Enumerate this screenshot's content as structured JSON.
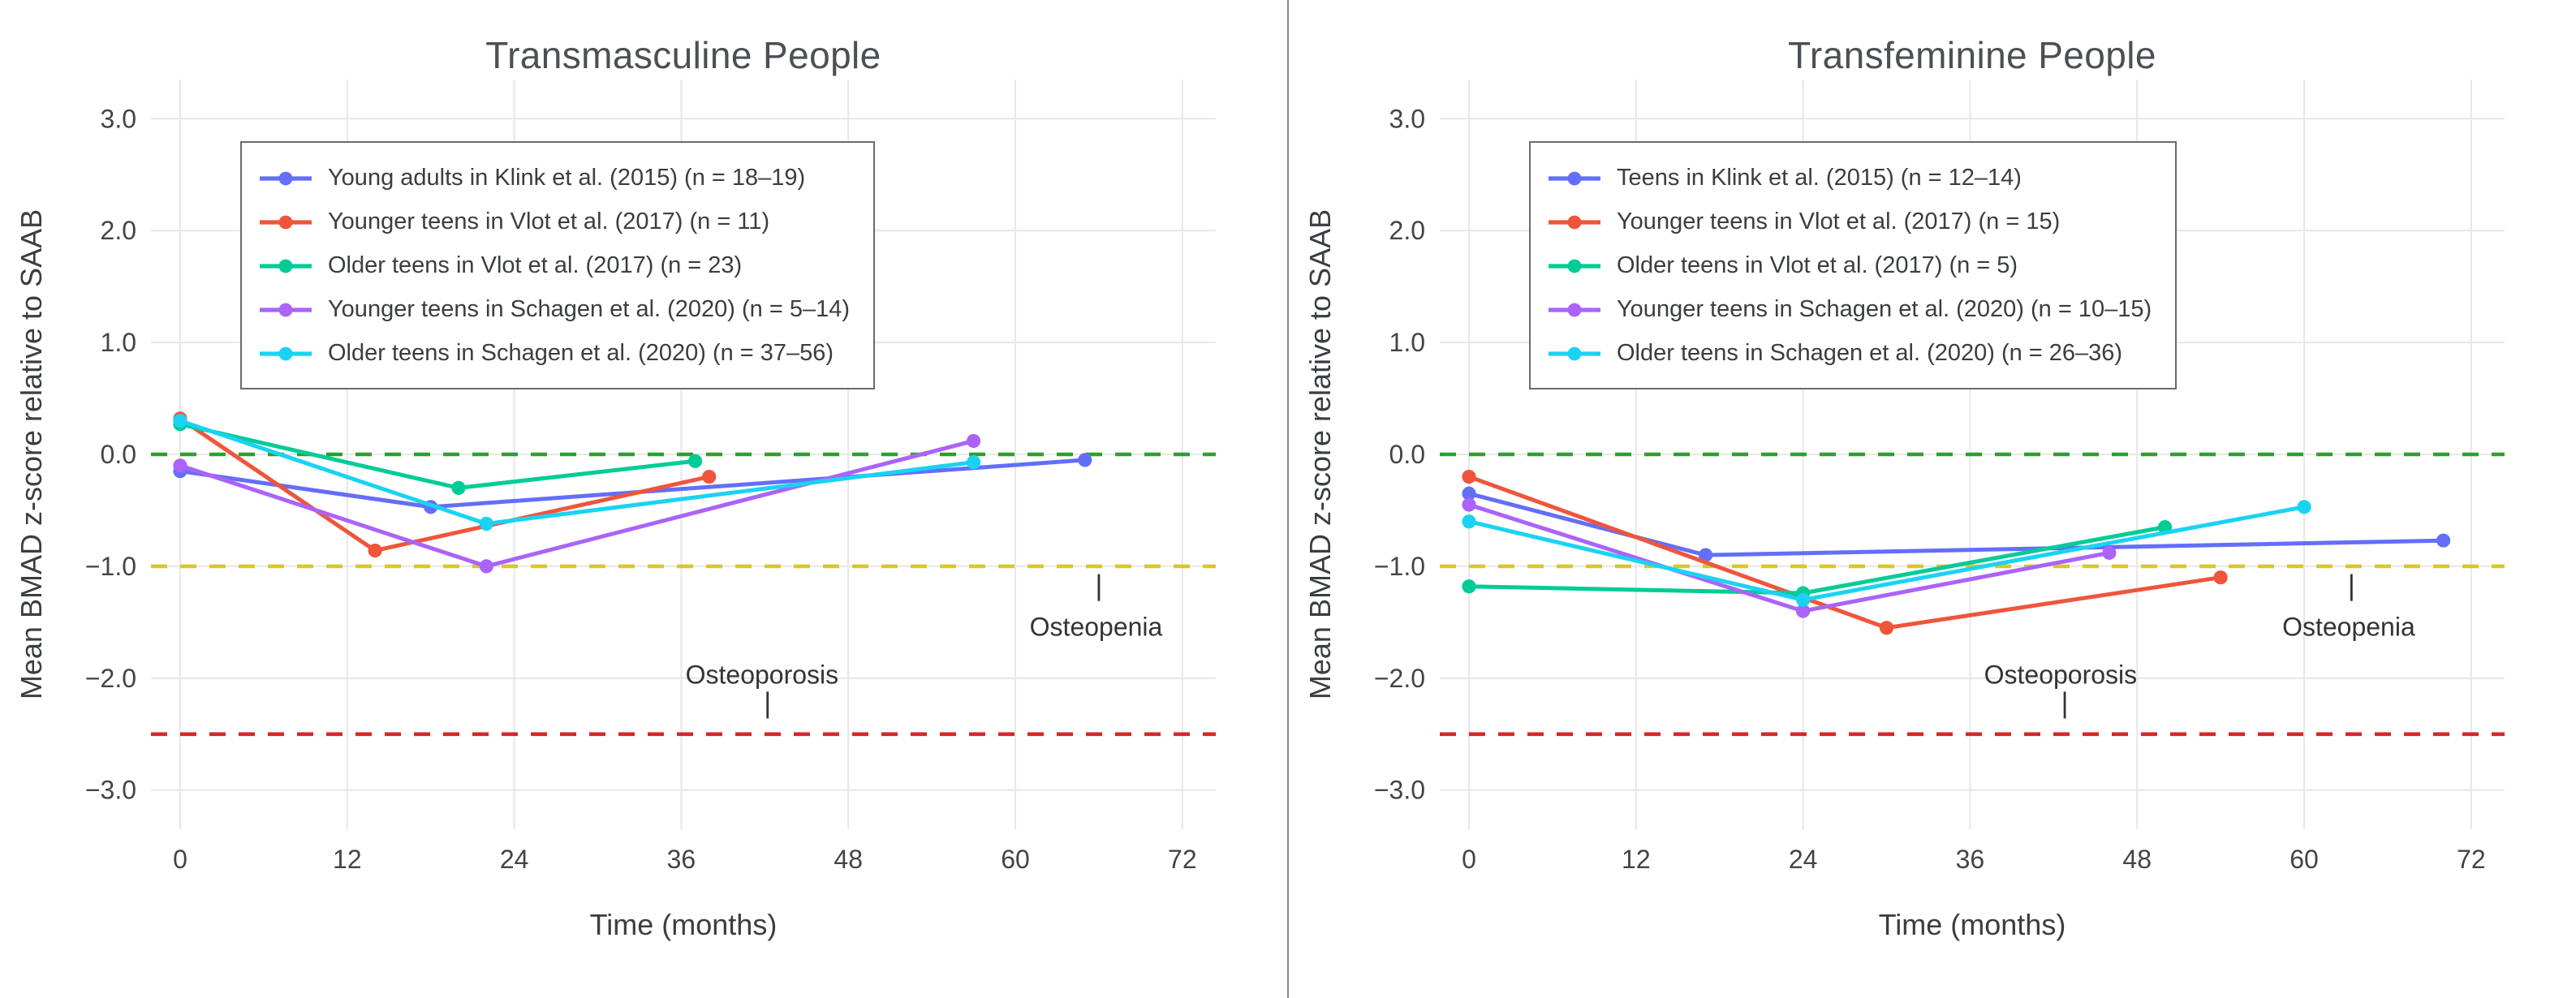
{
  "chart_data": [
    {
      "type": "line",
      "title": "Transmasculine People",
      "xlabel": "Time (months)",
      "ylabel": "Mean BMAD z-score relative to SAAB",
      "grid": true,
      "legend_position": "top-left",
      "x_range": [
        -2.1,
        74.4
      ],
      "y_range": [
        -3.35,
        3.35
      ],
      "x_ticks": [
        {
          "value": 0,
          "label": "0"
        },
        {
          "value": 12,
          "label": "12"
        },
        {
          "value": 24,
          "label": "24"
        },
        {
          "value": 36,
          "label": "36"
        },
        {
          "value": 48,
          "label": "48"
        },
        {
          "value": 60,
          "label": "60"
        },
        {
          "value": 72,
          "label": "72"
        }
      ],
      "y_ticks": [
        {
          "value": 3,
          "label": "3.0"
        },
        {
          "value": 2,
          "label": "2.0"
        },
        {
          "value": 1,
          "label": "1.0"
        },
        {
          "value": 0,
          "label": "0.0"
        },
        {
          "value": -1,
          "label": "−1.0"
        },
        {
          "value": -2,
          "label": "−2.0"
        },
        {
          "value": -3,
          "label": "−3.0"
        }
      ],
      "reference_lines": [
        {
          "name": "zero-line",
          "y": 0,
          "color": "#2ca02c"
        },
        {
          "name": "osteopenia-line",
          "y": -1,
          "color": "#d9c62e"
        },
        {
          "name": "osteoporosis-line",
          "y": -2.5,
          "color": "#d62728"
        }
      ],
      "annotations": [
        {
          "name": "osteopenia-label",
          "text": "Osteopenia",
          "x": 65.8,
          "y": -1.54,
          "tick_x": 66.0,
          "tick_y1": -1.07,
          "tick_y2": -1.31
        },
        {
          "name": "osteoporosis-label",
          "text": "Osteoporosis",
          "x": 41.8,
          "y": -1.97,
          "tick_x": 42.2,
          "tick_y1": -2.12,
          "tick_y2": -2.36
        }
      ],
      "series": [
        {
          "name": "Young adults in Klink et al. (2015) (n = 18–19)",
          "color": "#636efa",
          "points": [
            [
              0,
              -0.15
            ],
            [
              18,
              -0.47
            ],
            [
              65,
              -0.05
            ]
          ]
        },
        {
          "name": "Younger teens in Vlot et al. (2017) (n = 11)",
          "color": "#ef553b",
          "points": [
            [
              0,
              0.32
            ],
            [
              14,
              -0.86
            ],
            [
              38,
              -0.2
            ]
          ]
        },
        {
          "name": "Older teens in Vlot et al. (2017) (n = 23)",
          "color": "#00cc96",
          "points": [
            [
              0,
              0.27
            ],
            [
              20,
              -0.3
            ],
            [
              37,
              -0.06
            ]
          ]
        },
        {
          "name": "Younger teens in Schagen et al. (2020) (n = 5–14)",
          "color": "#ab63fa",
          "points": [
            [
              0,
              -0.1
            ],
            [
              22,
              -1.0
            ],
            [
              57,
              0.12
            ]
          ]
        },
        {
          "name": "Older teens in Schagen et al. (2020) (n = 37–56)",
          "color": "#19d3f3",
          "points": [
            [
              0,
              0.3
            ],
            [
              22,
              -0.62
            ],
            [
              57,
              -0.07
            ]
          ]
        }
      ]
    },
    {
      "type": "line",
      "title": "Transfeminine People",
      "xlabel": "Time (months)",
      "ylabel": "Mean BMAD z-score relative to SAAB",
      "grid": true,
      "legend_position": "top-left",
      "x_range": [
        -2.1,
        74.4
      ],
      "y_range": [
        -3.35,
        3.35
      ],
      "x_ticks": [
        {
          "value": 0,
          "label": "0"
        },
        {
          "value": 12,
          "label": "12"
        },
        {
          "value": 24,
          "label": "24"
        },
        {
          "value": 36,
          "label": "36"
        },
        {
          "value": 48,
          "label": "48"
        },
        {
          "value": 60,
          "label": "60"
        },
        {
          "value": 72,
          "label": "72"
        }
      ],
      "y_ticks": [
        {
          "value": 3,
          "label": "3.0"
        },
        {
          "value": 2,
          "label": "2.0"
        },
        {
          "value": 1,
          "label": "1.0"
        },
        {
          "value": 0,
          "label": "0.0"
        },
        {
          "value": -1,
          "label": "−1.0"
        },
        {
          "value": -2,
          "label": "−2.0"
        },
        {
          "value": -3,
          "label": "−3.0"
        }
      ],
      "reference_lines": [
        {
          "name": "zero-line",
          "y": 0,
          "color": "#2ca02c"
        },
        {
          "name": "osteopenia-line",
          "y": -1,
          "color": "#d9c62e"
        },
        {
          "name": "osteoporosis-line",
          "y": -2.5,
          "color": "#d62728"
        }
      ],
      "annotations": [
        {
          "name": "osteopenia-label",
          "text": "Osteopenia",
          "x": 63.2,
          "y": -1.54,
          "tick_x": 63.4,
          "tick_y1": -1.07,
          "tick_y2": -1.31
        },
        {
          "name": "osteoporosis-label",
          "text": "Osteoporosis",
          "x": 42.5,
          "y": -1.97,
          "tick_x": 42.8,
          "tick_y1": -2.12,
          "tick_y2": -2.36
        }
      ],
      "series": [
        {
          "name": "Teens in Klink et al. (2015) (n = 12–14)",
          "color": "#636efa",
          "points": [
            [
              0,
              -0.35
            ],
            [
              17,
              -0.9
            ],
            [
              70,
              -0.77
            ]
          ]
        },
        {
          "name": "Younger teens in Vlot et al. (2017) (n = 15)",
          "color": "#ef553b",
          "points": [
            [
              0,
              -0.2
            ],
            [
              30,
              -1.55
            ],
            [
              54,
              -1.1
            ]
          ]
        },
        {
          "name": "Older teens in Vlot et al. (2017) (n = 5)",
          "color": "#00cc96",
          "points": [
            [
              0,
              -1.18
            ],
            [
              24,
              -1.24
            ],
            [
              50,
              -0.65
            ]
          ]
        },
        {
          "name": "Younger teens in Schagen et al. (2020) (n = 10–15)",
          "color": "#ab63fa",
          "points": [
            [
              0,
              -0.45
            ],
            [
              24,
              -1.4
            ],
            [
              46,
              -0.88
            ]
          ]
        },
        {
          "name": "Older teens in Schagen et al. (2020) (n = 26–36)",
          "color": "#19d3f3",
          "points": [
            [
              0,
              -0.6
            ],
            [
              24,
              -1.3
            ],
            [
              60,
              -0.47
            ]
          ]
        }
      ]
    }
  ]
}
